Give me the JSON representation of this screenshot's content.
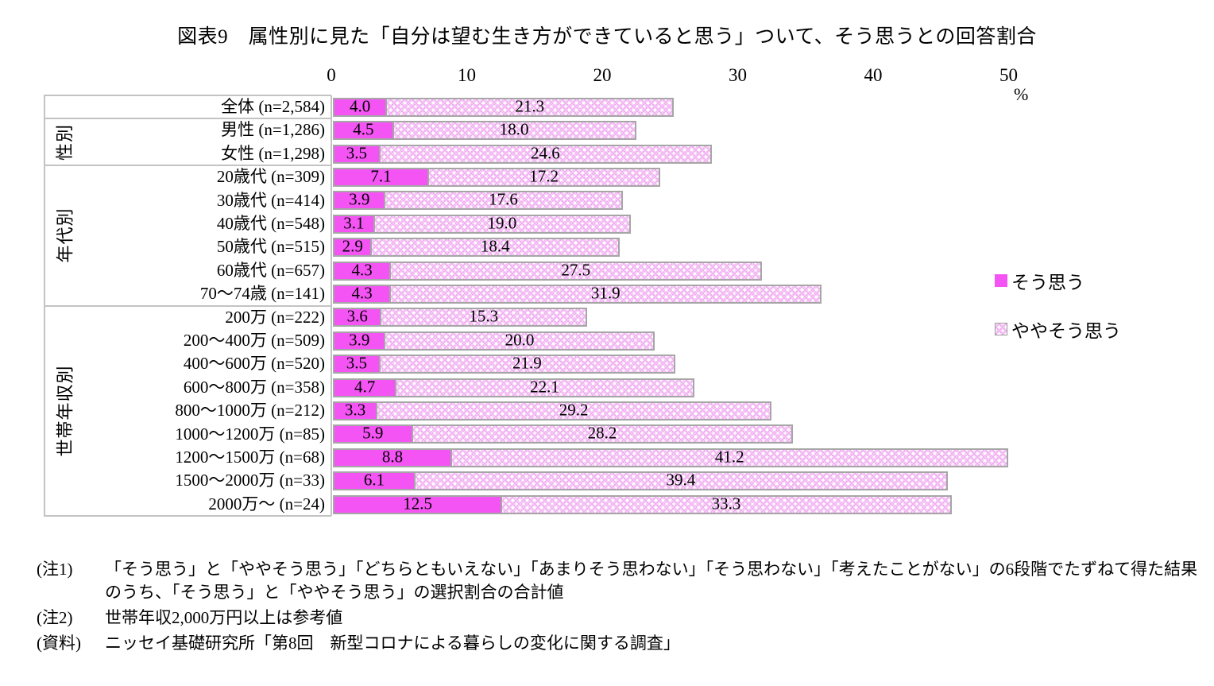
{
  "title": "図表9　属性別に見た「自分は望む生き方ができていると思う」ついて、そう思うとの回答割合",
  "unit_label": "%",
  "legend": {
    "items": [
      {
        "label": "そう思う",
        "swatch": "solid"
      },
      {
        "label": "ややそう思う",
        "swatch": "pattern"
      }
    ]
  },
  "chart_data": {
    "type": "bar",
    "orientation": "horizontal",
    "stacked": true,
    "title": "図表9　属性別に見た「自分は望む生き方ができていると思う」ついて、そう思うとの回答割合",
    "xlabel": "%",
    "xlim": [
      0,
      50
    ],
    "xticks": [
      0,
      10,
      20,
      30,
      40,
      50
    ],
    "grid": false,
    "legend_position": "right",
    "series_names": [
      "そう思う",
      "ややそう思う"
    ],
    "groups": [
      {
        "label": "",
        "rows": [
          {
            "label": "全体 (n=2,584)",
            "sou_omou": 4.0,
            "yaya_sou_omou": 21.3
          }
        ]
      },
      {
        "label": "性別",
        "rows": [
          {
            "label": "男性 (n=1,286)",
            "sou_omou": 4.5,
            "yaya_sou_omou": 18.0
          },
          {
            "label": "女性 (n=1,298)",
            "sou_omou": 3.5,
            "yaya_sou_omou": 24.6
          }
        ]
      },
      {
        "label": "年代別",
        "rows": [
          {
            "label": "20歳代 (n=309)",
            "sou_omou": 7.1,
            "yaya_sou_omou": 17.2
          },
          {
            "label": "30歳代 (n=414)",
            "sou_omou": 3.9,
            "yaya_sou_omou": 17.6
          },
          {
            "label": "40歳代 (n=548)",
            "sou_omou": 3.1,
            "yaya_sou_omou": 19.0
          },
          {
            "label": "50歳代 (n=515)",
            "sou_omou": 2.9,
            "yaya_sou_omou": 18.4
          },
          {
            "label": "60歳代 (n=657)",
            "sou_omou": 4.3,
            "yaya_sou_omou": 27.5
          },
          {
            "label": "70〜74歳 (n=141)",
            "sou_omou": 4.3,
            "yaya_sou_omou": 31.9
          }
        ]
      },
      {
        "label": "世帯年収別",
        "rows": [
          {
            "label": "200万 (n=222)",
            "sou_omou": 3.6,
            "yaya_sou_omou": 15.3
          },
          {
            "label": "200〜400万 (n=509)",
            "sou_omou": 3.9,
            "yaya_sou_omou": 20.0
          },
          {
            "label": "400〜600万 (n=520)",
            "sou_omou": 3.5,
            "yaya_sou_omou": 21.9
          },
          {
            "label": "600〜800万 (n=358)",
            "sou_omou": 4.7,
            "yaya_sou_omou": 22.1
          },
          {
            "label": "800〜1000万 (n=212)",
            "sou_omou": 3.3,
            "yaya_sou_omou": 29.2
          },
          {
            "label": "1000〜1200万 (n=85)",
            "sou_omou": 5.9,
            "yaya_sou_omou": 28.2
          },
          {
            "label": "1200〜1500万 (n=68)",
            "sou_omou": 8.8,
            "yaya_sou_omou": 41.2
          },
          {
            "label": "1500〜2000万 (n=33)",
            "sou_omou": 6.1,
            "yaya_sou_omou": 39.4
          },
          {
            "label": "2000万〜 (n=24)",
            "sou_omou": 12.5,
            "yaya_sou_omou": 33.3
          }
        ]
      }
    ],
    "colors": {
      "sou_omou": "#f454f4",
      "yaya_sou_omou_base": "#efaef0",
      "bar_border": "#a6a6a6",
      "axis_line": "#c3c3c3"
    }
  },
  "notes": [
    {
      "prefix": "(注1)",
      "text": "「そう思う」と「ややそう思う」「どちらともいえない」「あまりそう思わない」「そう思わない」「考えたことがない」の6段階でたずねて得た結果のうち、「そう思う」と「ややそう思う」の選択割合の合計値"
    },
    {
      "prefix": "(注2)",
      "text": "世帯年収2,000万円以上は参考値"
    },
    {
      "prefix": "(資料)",
      "text": "ニッセイ基礎研究所「第8回　新型コロナによる暮らしの変化に関する調査」"
    }
  ]
}
